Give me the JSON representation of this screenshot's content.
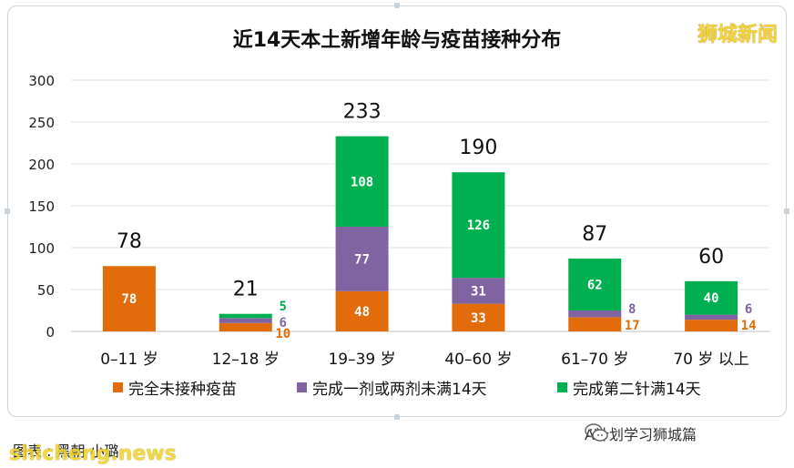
{
  "brand": "狮城新闻",
  "footer": {
    "caption": "图表 : 黑朝 小璐",
    "watermark": "shicheng.news",
    "wechat_label": "A计划学习狮城篇"
  },
  "colors": {
    "series1": "#e36c0a",
    "series2": "#8064a2",
    "series3": "#00b050"
  },
  "chart_data": {
    "type": "bar",
    "stacked": true,
    "title": "近14天本土新增年龄与疫苗接种分布",
    "categories": [
      "0–11 岁",
      "12–18 岁",
      "19–39 岁",
      "40–60 岁",
      "61–70 岁",
      "70 岁 以上"
    ],
    "series": [
      {
        "name": "完全未接种疫苗",
        "values": [
          78,
          10,
          48,
          33,
          17,
          14
        ]
      },
      {
        "name": "完成一剂或两剂未满14天",
        "values": [
          0,
          6,
          77,
          31,
          8,
          6
        ]
      },
      {
        "name": "完成第二针满14天",
        "values": [
          0,
          5,
          108,
          126,
          62,
          40
        ]
      }
    ],
    "totals": [
      78,
      21,
      233,
      190,
      87,
      60
    ],
    "ylim": [
      0,
      300
    ],
    "yticks": [
      0,
      50,
      100,
      150,
      200,
      250,
      300
    ],
    "grid": true,
    "legend": "bottom"
  }
}
